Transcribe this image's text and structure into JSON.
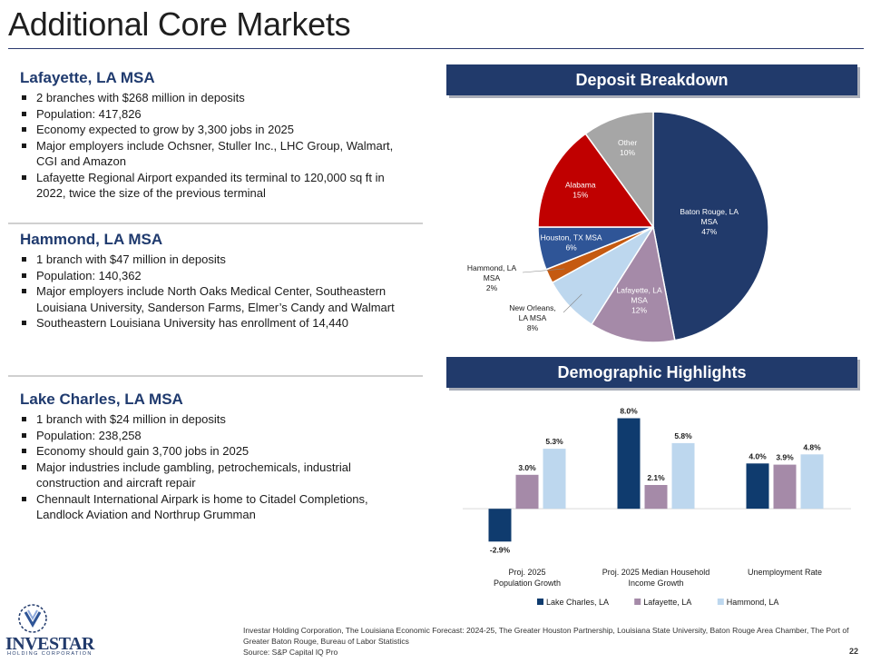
{
  "title": "Additional Core Markets",
  "sections": [
    {
      "heading": "Lafayette, LA MSA",
      "bullets": [
        "2 branches with $268 million in deposits",
        "Population: 417,826",
        "Economy expected to grow by 3,300 jobs in 2025",
        "Major employers include Ochsner, Stuller Inc., LHC Group, Walmart, CGI and Amazon",
        "Lafayette Regional Airport expanded its terminal to 120,000 sq ft in 2022, twice the size of the previous terminal"
      ]
    },
    {
      "heading": "Hammond,  LA MSA",
      "bullets": [
        "1 branch with $47 million in deposits",
        "Population: 140,362",
        "Major employers include North Oaks Medical Center, Southeastern Louisiana University, Sanderson Farms, Elmer’s Candy and Walmart",
        "Southeastern Louisiana University has enrollment of 14,440"
      ]
    },
    {
      "heading": "Lake Charles,  LA MSA",
      "bullets": [
        "1 branch with $24 million in deposits",
        "Population: 238,258",
        "Economy should gain 3,700 jobs in 2025",
        "Major industries include gambling, petrochemicals, industrial construction and aircraft repair",
        "Chennault International Airpark is home to Citadel Completions, Landlock Aviation and Northrup  Grumman"
      ]
    }
  ],
  "banners": {
    "deposit": "Deposit Breakdown",
    "demographic": "Demographic Highlights"
  },
  "chart_data": [
    {
      "type": "pie",
      "title": "Deposit Breakdown",
      "slices": [
        {
          "label": "Baton Rouge, LA MSA",
          "lines": [
            "Baton Rouge, LA",
            "MSA"
          ],
          "pct_label": "47%",
          "value": 47,
          "color": "#213a6b",
          "text_color": "#ffffff"
        },
        {
          "label": "Lafayette, LA MSA",
          "lines": [
            "Lafayette, LA",
            "MSA"
          ],
          "pct_label": "12%",
          "value": 12,
          "color": "#a58aa8",
          "text_color": "#ffffff"
        },
        {
          "label": "New Orleans, LA MSA",
          "lines": [
            "New Orleans,",
            "LA MSA"
          ],
          "pct_label": "8%",
          "value": 8,
          "color": "#bdd7ee",
          "text_color": "#1a1a1a"
        },
        {
          "label": "Hammond, LA MSA",
          "lines": [
            "Hammond, LA",
            "MSA"
          ],
          "pct_label": "2%",
          "value": 2,
          "color": "#c55a11",
          "text_color": "#1a1a1a"
        },
        {
          "label": "Houston, TX MSA",
          "lines": [
            "Houston, TX MSA"
          ],
          "pct_label": "6%",
          "value": 6,
          "color": "#2f5597",
          "text_color": "#ffffff"
        },
        {
          "label": "Alabama",
          "lines": [
            "Alabama"
          ],
          "pct_label": "15%",
          "value": 15,
          "color": "#c00000",
          "text_color": "#ffffff"
        },
        {
          "label": "Other",
          "lines": [
            "Other"
          ],
          "pct_label": "10%",
          "value": 10,
          "color": "#a6a6a6",
          "text_color": "#ffffff"
        }
      ]
    },
    {
      "type": "bar",
      "title": "Demographic Highlights",
      "categories": [
        [
          "Proj. 2025",
          "Population Growth"
        ],
        [
          "Proj. 2025 Median Household",
          "Income Growth"
        ],
        [
          "Unemployment Rate"
        ]
      ],
      "series": [
        {
          "name": "Lake Charles, LA",
          "color": "#0f3b6e",
          "values": [
            -2.9,
            8.0,
            4.0
          ],
          "labels": [
            "-2.9%",
            "8.0%",
            "4.0%"
          ]
        },
        {
          "name": "Lafayette, LA",
          "color": "#a58aa8",
          "values": [
            3.0,
            2.1,
            3.9
          ],
          "labels": [
            "3.0%",
            "2.1%",
            "3.9%"
          ]
        },
        {
          "name": "Hammond, LA",
          "color": "#bdd7ee",
          "values": [
            5.3,
            5.8,
            4.8
          ],
          "labels": [
            "5.3%",
            "5.8%",
            "4.8%"
          ]
        }
      ],
      "ylim": [
        -4,
        9
      ]
    }
  ],
  "footnote": {
    "sources": "Investar Holding Corporation, The Louisiana Economic Forecast: 2024-25, The Greater Houston Partnership, Louisiana State University, Baton Rouge Area Chamber, The Port of Greater Baton Rouge, Bureau of Labor Statistics",
    "source_line": "Source: S&P Capital IQ Pro"
  },
  "page_number": "22",
  "logo": {
    "name": "INVESTAR",
    "subtitle": "HOLDING CORPORATION"
  }
}
